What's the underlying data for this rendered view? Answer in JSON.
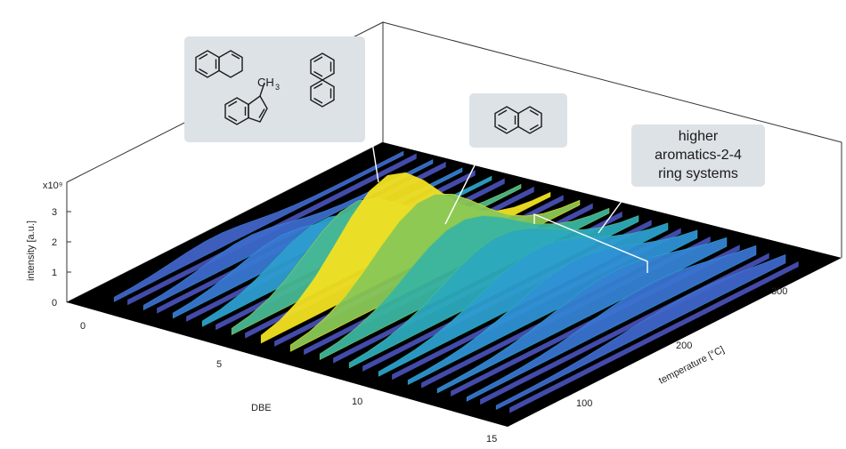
{
  "chart_data": {
    "type": "surface-3d",
    "title": "",
    "xlabel": "DBE",
    "ylabel": "temperature [°C]",
    "zlabel": "intensity [a.u.]",
    "z_multiplier": "x10⁹",
    "x_ticks": [
      "0",
      "5",
      "10",
      "15"
    ],
    "y_ticks": [
      "100",
      "200",
      "300"
    ],
    "z_ticks": [
      "0",
      "1",
      "2",
      "3"
    ],
    "xlim": [
      0,
      15
    ],
    "ylim": [
      20,
      370
    ],
    "zlim": [
      0,
      3.5
    ],
    "dbe_ridges": [
      1,
      2,
      3,
      4,
      5,
      6,
      7,
      8,
      9,
      10,
      11,
      12,
      13,
      14
    ],
    "temperature": [
      40,
      60,
      80,
      100,
      120,
      140,
      160,
      180,
      200,
      220,
      240,
      260,
      280,
      300,
      320,
      340,
      360
    ],
    "peak_intensity": [
      0.35,
      0.55,
      0.8,
      1.4,
      2.2,
      3.3,
      2.7,
      2.1,
      1.75,
      1.45,
      1.2,
      0.95,
      0.7,
      0.45
    ],
    "peak_temperature": [
      150,
      155,
      160,
      170,
      175,
      180,
      190,
      195,
      205,
      215,
      225,
      235,
      245,
      255
    ],
    "colorscale": [
      "#4a53bd",
      "#3b6fd0",
      "#2d9ad6",
      "#2bb3b0",
      "#7fc65b",
      "#f3e221",
      "#f6a64b"
    ]
  },
  "annotations": [
    {
      "id": "aromatics-small",
      "text": "",
      "molecules": [
        "1,2-dihydronaphthalene",
        "1-methylindene",
        "biphenyl"
      ],
      "methyl_label": "CH₃"
    },
    {
      "id": "naphthalene",
      "text": "",
      "molecules": [
        "naphthalene"
      ]
    },
    {
      "id": "higher-aromatics",
      "lines": [
        "higher",
        "aromatics-2-4",
        "ring systems"
      ]
    }
  ]
}
